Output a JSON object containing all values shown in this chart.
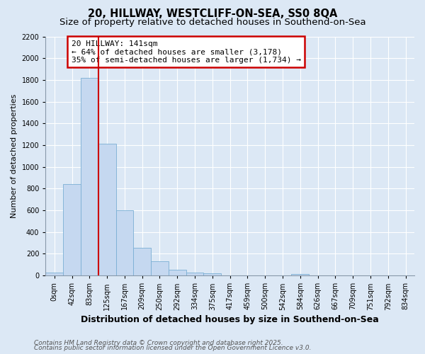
{
  "title1": "20, HILLWAY, WESTCLIFF-ON-SEA, SS0 8QA",
  "title2": "Size of property relative to detached houses in Southend-on-Sea",
  "xlabel": "Distribution of detached houses by size in Southend-on-Sea",
  "ylabel": "Number of detached properties",
  "bar_labels": [
    "0sqm",
    "42sqm",
    "83sqm",
    "125sqm",
    "167sqm",
    "209sqm",
    "250sqm",
    "292sqm",
    "334sqm",
    "375sqm",
    "417sqm",
    "459sqm",
    "500sqm",
    "542sqm",
    "584sqm",
    "626sqm",
    "667sqm",
    "709sqm",
    "751sqm",
    "792sqm",
    "834sqm"
  ],
  "bar_values": [
    25,
    840,
    1820,
    1210,
    600,
    255,
    130,
    50,
    30,
    20,
    0,
    0,
    0,
    0,
    13,
    0,
    0,
    0,
    0,
    0,
    0
  ],
  "bar_color": "#c5d8f0",
  "bar_edge_color": "#7aafd4",
  "bg_color": "#dce8f5",
  "grid_color": "#ffffff",
  "vline_color": "#cc0000",
  "vline_pos": 2.5,
  "ylim": [
    0,
    2200
  ],
  "yticks": [
    0,
    200,
    400,
    600,
    800,
    1000,
    1200,
    1400,
    1600,
    1800,
    2000,
    2200
  ],
  "annotation_title": "20 HILLWAY: 141sqm",
  "annotation_line1": "← 64% of detached houses are smaller (3,178)",
  "annotation_line2": "35% of semi-detached houses are larger (1,734) →",
  "annotation_box_color": "#cc0000",
  "footnote1": "Contains HM Land Registry data © Crown copyright and database right 2025.",
  "footnote2": "Contains public sector information licensed under the Open Government Licence v3.0.",
  "title_fontsize": 10.5,
  "subtitle_fontsize": 9.5,
  "xlabel_fontsize": 9,
  "ylabel_fontsize": 8,
  "tick_fontsize": 7,
  "annotation_fontsize": 8,
  "footnote_fontsize": 6.5
}
